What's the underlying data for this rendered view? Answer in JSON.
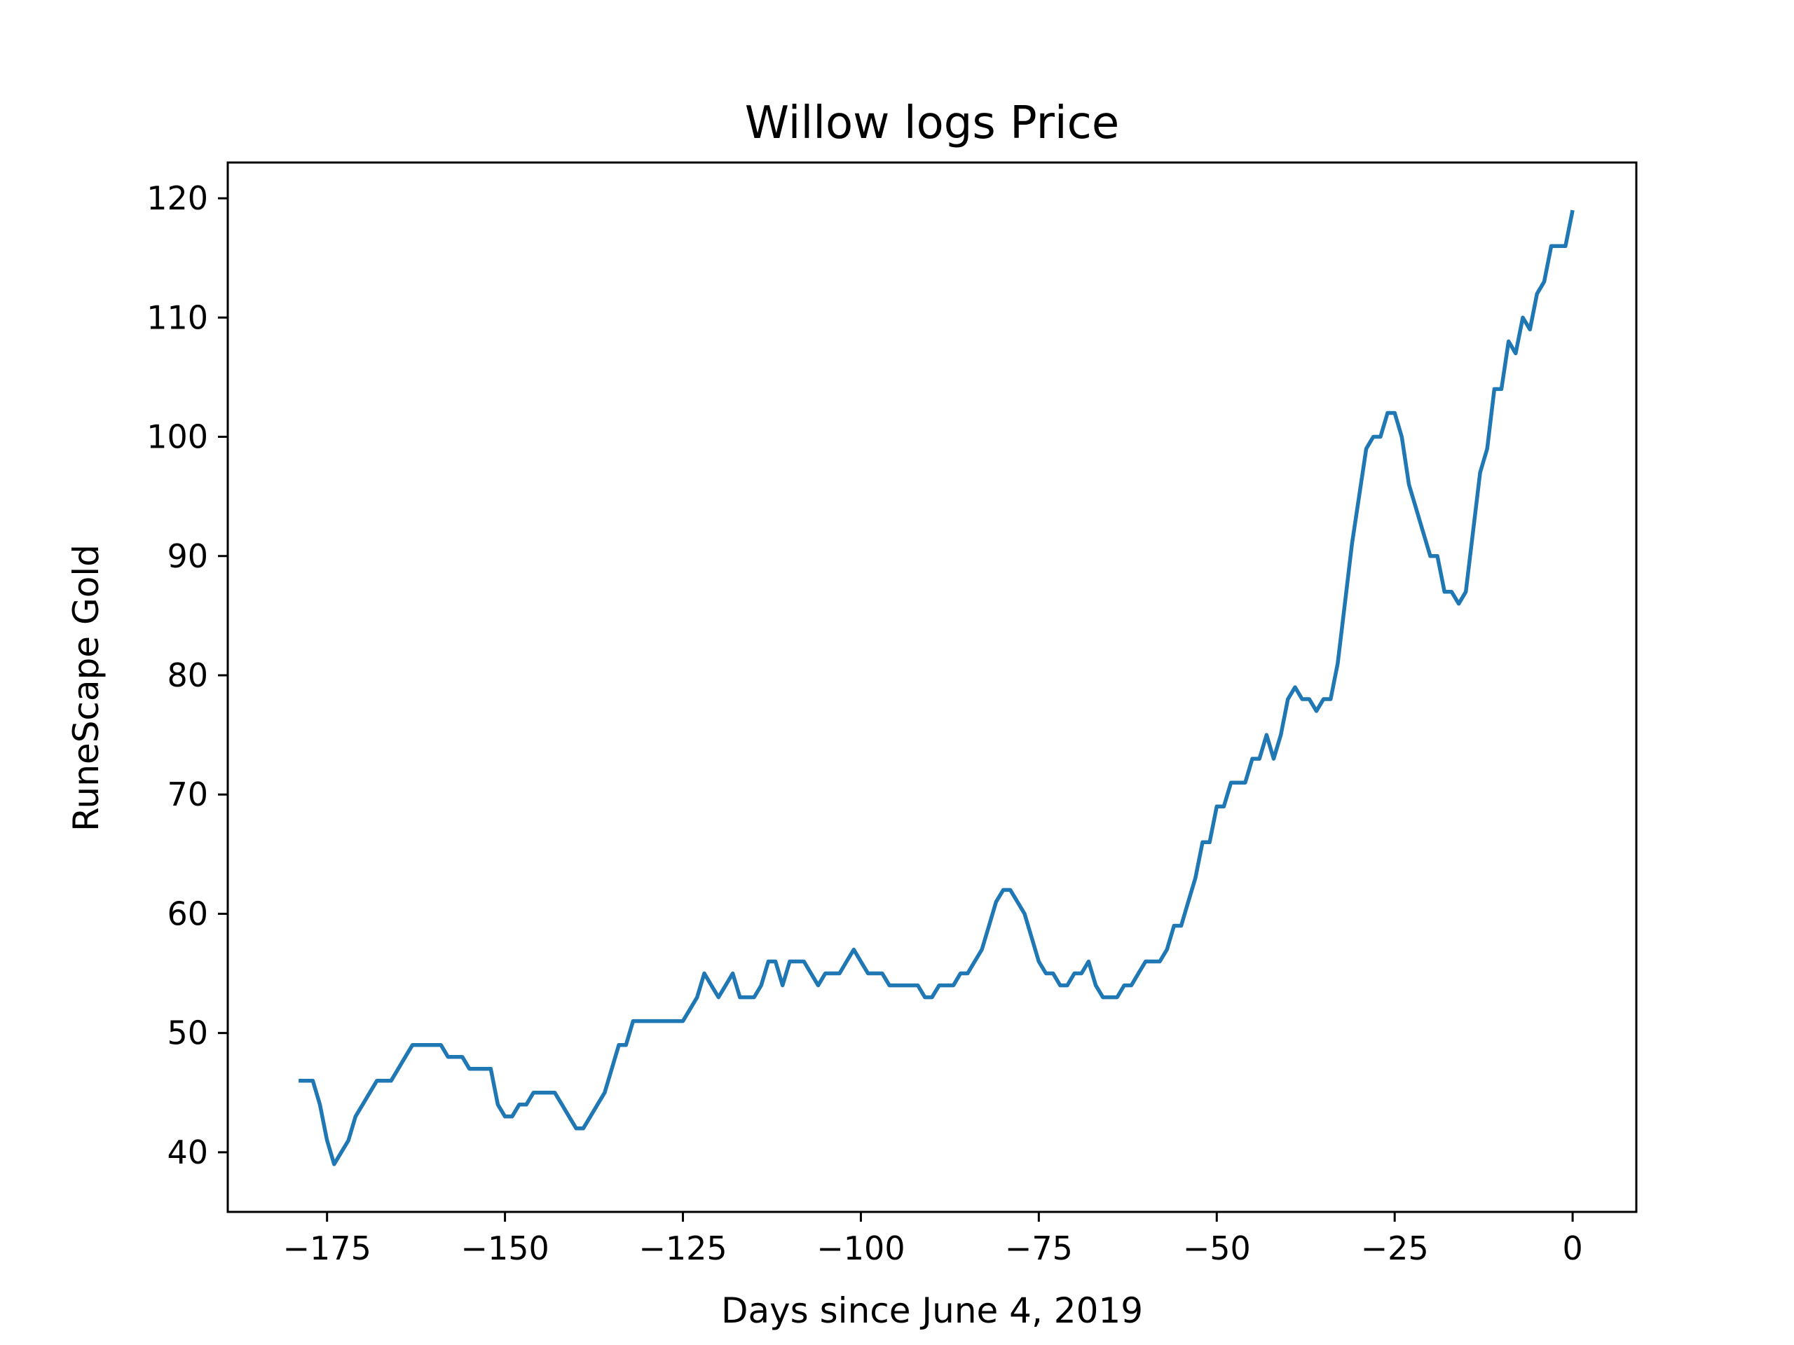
{
  "chart_data": {
    "type": "line",
    "title": "Willow logs Price",
    "xlabel": "Days since June 4, 2019",
    "ylabel": "RuneScape Gold",
    "xlim": [
      -188.95,
      8.95
    ],
    "ylim": [
      35,
      123
    ],
    "xticks": [
      -175,
      -150,
      -125,
      -100,
      -75,
      -50,
      -25,
      0
    ],
    "xtick_labels": [
      "−175",
      "−150",
      "−125",
      "−100",
      "−75",
      "−50",
      "−25",
      "0"
    ],
    "yticks": [
      40,
      50,
      60,
      70,
      80,
      90,
      100,
      110,
      120
    ],
    "ytick_labels": [
      "40",
      "50",
      "60",
      "70",
      "80",
      "90",
      "100",
      "110",
      "120"
    ],
    "grid": false,
    "legend": "none",
    "series": [
      {
        "color": "#1f77b4",
        "x": [
          -179,
          -178,
          -177,
          -176,
          -175,
          -174,
          -173,
          -172,
          -171,
          -170,
          -169,
          -168,
          -167,
          -166,
          -165,
          -164,
          -163,
          -162,
          -161,
          -160,
          -159,
          -158,
          -157,
          -156,
          -155,
          -154,
          -153,
          -152,
          -151,
          -150,
          -149,
          -148,
          -147,
          -146,
          -145,
          -144,
          -143,
          -142,
          -141,
          -140,
          -139,
          -138,
          -137,
          -136,
          -135,
          -134,
          -133,
          -132,
          -131,
          -130,
          -129,
          -128,
          -127,
          -126,
          -125,
          -124,
          -123,
          -122,
          -121,
          -120,
          -119,
          -118,
          -117,
          -116,
          -115,
          -114,
          -113,
          -112,
          -111,
          -110,
          -109,
          -108,
          -107,
          -106,
          -105,
          -104,
          -103,
          -102,
          -101,
          -100,
          -99,
          -98,
          -97,
          -96,
          -95,
          -94,
          -93,
          -92,
          -91,
          -90,
          -89,
          -88,
          -87,
          -86,
          -85,
          -84,
          -83,
          -82,
          -81,
          -80,
          -79,
          -78,
          -77,
          -76,
          -75,
          -74,
          -73,
          -72,
          -71,
          -70,
          -69,
          -68,
          -67,
          -66,
          -65,
          -64,
          -63,
          -62,
          -61,
          -60,
          -59,
          -58,
          -57,
          -56,
          -55,
          -54,
          -53,
          -52,
          -51,
          -50,
          -49,
          -48,
          -47,
          -46,
          -45,
          -44,
          -43,
          -42,
          -41,
          -40,
          -39,
          -38,
          -37,
          -36,
          -35,
          -34,
          -33,
          -32,
          -31,
          -30,
          -29,
          -28,
          -27,
          -26,
          -25,
          -24,
          -23,
          -22,
          -21,
          -20,
          -19,
          -18,
          -17,
          -16,
          -15,
          -14,
          -13,
          -12,
          -11,
          -10,
          -9,
          -8,
          -7,
          -6,
          -5,
          -4,
          -3,
          -2,
          -1,
          0
        ],
        "y": [
          46,
          46,
          46,
          44,
          41,
          39,
          40,
          41,
          43,
          44,
          45,
          46,
          46,
          46,
          47,
          48,
          49,
          49,
          49,
          49,
          49,
          48,
          48,
          48,
          47,
          47,
          47,
          47,
          44,
          43,
          43,
          44,
          44,
          45,
          45,
          45,
          45,
          44,
          43,
          42,
          42,
          43,
          44,
          45,
          47,
          49,
          49,
          51,
          51,
          51,
          51,
          51,
          51,
          51,
          51,
          52,
          53,
          55,
          54,
          53,
          54,
          55,
          53,
          53,
          53,
          54,
          56,
          56,
          54,
          56,
          56,
          56,
          55,
          54,
          55,
          55,
          55,
          56,
          57,
          56,
          55,
          55,
          55,
          54,
          54,
          54,
          54,
          54,
          53,
          53,
          54,
          54,
          54,
          55,
          55,
          56,
          57,
          59,
          61,
          62,
          62,
          61,
          60,
          58,
          56,
          55,
          55,
          54,
          54,
          55,
          55,
          56,
          54,
          53,
          53,
          53,
          54,
          54,
          55,
          56,
          56,
          56,
          57,
          59,
          59,
          61,
          63,
          66,
          66,
          69,
          69,
          71,
          71,
          71,
          73,
          73,
          75,
          73,
          75,
          78,
          79,
          78,
          78,
          77,
          78,
          78,
          81,
          86,
          91,
          95,
          99,
          100,
          100,
          102,
          102,
          100,
          96,
          94,
          92,
          90,
          90,
          87,
          87,
          86,
          87,
          92,
          97,
          99,
          104,
          104,
          108,
          107,
          110,
          109,
          112,
          113,
          116,
          116,
          116,
          119
        ]
      }
    ]
  }
}
